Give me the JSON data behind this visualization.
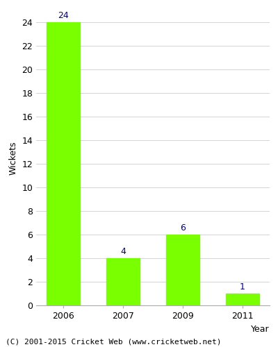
{
  "categories": [
    "2006",
    "2007",
    "2009",
    "2011"
  ],
  "values": [
    24,
    4,
    6,
    1
  ],
  "bar_color": "#7aff00",
  "bar_edge_color": "#7aff00",
  "xlabel": "Year",
  "ylabel": "Wickets",
  "ylim": [
    0,
    25
  ],
  "yticks": [
    0,
    2,
    4,
    6,
    8,
    10,
    12,
    14,
    16,
    18,
    20,
    22,
    24
  ],
  "label_color": "#000080",
  "label_fontsize": 9,
  "axis_label_fontsize": 9,
  "tick_fontsize": 9,
  "footer_text": "(C) 2001-2015 Cricket Web (www.cricketweb.net)",
  "footer_fontsize": 8,
  "background_color": "#ffffff",
  "grid_color": "#cccccc"
}
